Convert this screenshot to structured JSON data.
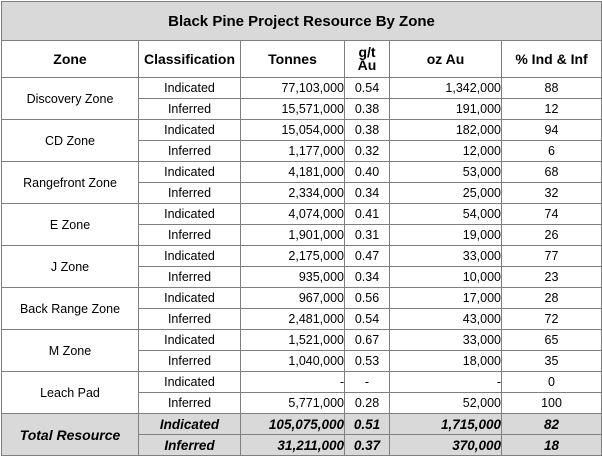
{
  "title": "Black Pine Project Resource By Zone",
  "headers": {
    "zone": "Zone",
    "classification": "Classification",
    "tonnes": "Tonnes",
    "grade_top": "g/t",
    "grade_bottom": "Au",
    "oz": "oz Au",
    "pct": "% Ind & Inf"
  },
  "zones": [
    {
      "name": "Discovery Zone",
      "rows": [
        {
          "classification": "Indicated",
          "tonnes": "77,103,000",
          "grade": "0.54",
          "oz": "1,342,000",
          "pct": "88"
        },
        {
          "classification": "Inferred",
          "tonnes": "15,571,000",
          "grade": "0.38",
          "oz": "191,000",
          "pct": "12"
        }
      ]
    },
    {
      "name": "CD Zone",
      "rows": [
        {
          "classification": "Indicated",
          "tonnes": "15,054,000",
          "grade": "0.38",
          "oz": "182,000",
          "pct": "94"
        },
        {
          "classification": "Inferred",
          "tonnes": "1,177,000",
          "grade": "0.32",
          "oz": "12,000",
          "pct": "6"
        }
      ]
    },
    {
      "name": "Rangefront Zone",
      "rows": [
        {
          "classification": "Indicated",
          "tonnes": "4,181,000",
          "grade": "0.40",
          "oz": "53,000",
          "pct": "68"
        },
        {
          "classification": "Inferred",
          "tonnes": "2,334,000",
          "grade": "0.34",
          "oz": "25,000",
          "pct": "32"
        }
      ]
    },
    {
      "name": "E Zone",
      "rows": [
        {
          "classification": "Indicated",
          "tonnes": "4,074,000",
          "grade": "0.41",
          "oz": "54,000",
          "pct": "74"
        },
        {
          "classification": "Inferred",
          "tonnes": "1,901,000",
          "grade": "0.31",
          "oz": "19,000",
          "pct": "26"
        }
      ]
    },
    {
      "name": "J Zone",
      "rows": [
        {
          "classification": "Indicated",
          "tonnes": "2,175,000",
          "grade": "0.47",
          "oz": "33,000",
          "pct": "77"
        },
        {
          "classification": "Inferred",
          "tonnes": "935,000",
          "grade": "0.34",
          "oz": "10,000",
          "pct": "23"
        }
      ]
    },
    {
      "name": "Back Range Zone",
      "rows": [
        {
          "classification": "Indicated",
          "tonnes": "967,000",
          "grade": "0.56",
          "oz": "17,000",
          "pct": "28"
        },
        {
          "classification": "Inferred",
          "tonnes": "2,481,000",
          "grade": "0.54",
          "oz": "43,000",
          "pct": "72"
        }
      ]
    },
    {
      "name": "M Zone",
      "rows": [
        {
          "classification": "Indicated",
          "tonnes": "1,521,000",
          "grade": "0.67",
          "oz": "33,000",
          "pct": "65"
        },
        {
          "classification": "Inferred",
          "tonnes": "1,040,000",
          "grade": "0.53",
          "oz": "18,000",
          "pct": "35"
        }
      ]
    },
    {
      "name": "Leach Pad",
      "rows": [
        {
          "classification": "Indicated",
          "tonnes": "-",
          "grade": "-",
          "oz": "-",
          "pct": "0"
        },
        {
          "classification": "Inferred",
          "tonnes": "5,771,000",
          "grade": "0.28",
          "oz": "52,000",
          "pct": "100"
        }
      ]
    }
  ],
  "total": {
    "name": "Total Resource",
    "rows": [
      {
        "classification": "Indicated",
        "tonnes": "105,075,000",
        "grade": "0.51",
        "oz": "1,715,000",
        "pct": "82"
      },
      {
        "classification": "Inferred",
        "tonnes": "31,211,000",
        "grade": "0.37",
        "oz": "370,000",
        "pct": "18"
      }
    ]
  },
  "colors": {
    "header_fill": "#d9d9d9",
    "border": "#7f7f7f"
  }
}
